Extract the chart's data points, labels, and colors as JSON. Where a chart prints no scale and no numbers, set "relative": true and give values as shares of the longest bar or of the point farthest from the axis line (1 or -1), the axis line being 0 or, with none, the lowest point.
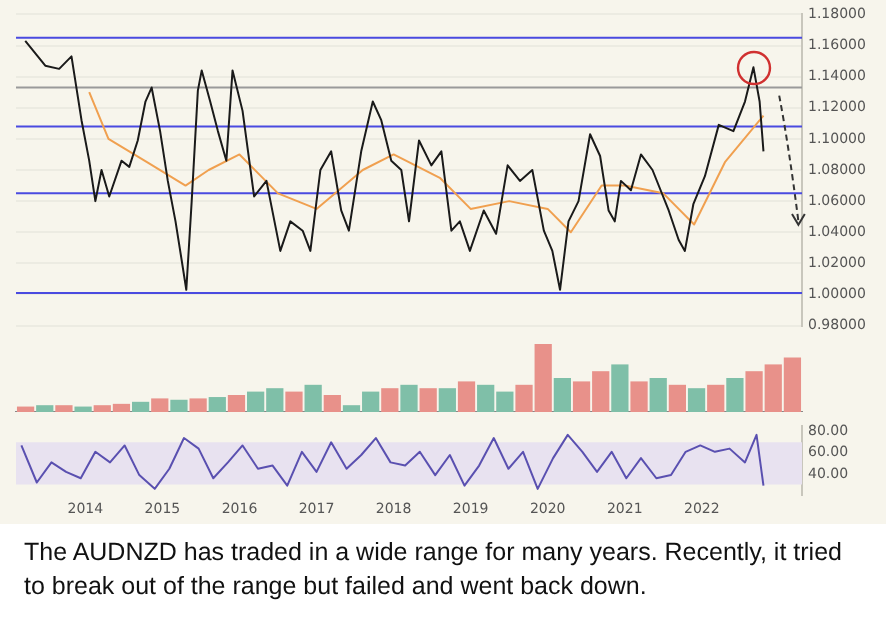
{
  "chart_data": [
    {
      "type": "line",
      "tick_labels": "y",
      "grid": true,
      "legend": false,
      "xlim": [
        2013.1,
        2023.3
      ],
      "ylim": [
        0.98,
        1.18
      ],
      "yticks": [
        {
          "value": 0.98,
          "label": "0.98000"
        },
        {
          "value": 1.0,
          "label": "1.00000"
        },
        {
          "value": 1.02,
          "label": "1.02000"
        },
        {
          "value": 1.04,
          "label": "1.04000"
        },
        {
          "value": 1.06,
          "label": "1.06000"
        },
        {
          "value": 1.08,
          "label": "1.08000"
        },
        {
          "value": 1.1,
          "label": "1.10000"
        },
        {
          "value": 1.12,
          "label": "1.12000"
        },
        {
          "value": 1.14,
          "label": "1.14000"
        },
        {
          "value": 1.16,
          "label": "1.16000"
        },
        {
          "value": 1.18,
          "label": "1.18000"
        }
      ],
      "series": [
        {
          "color": "#1a1a1a",
          "x": [
            2013.22,
            2013.48,
            2013.66,
            2013.82,
            2013.95,
            2014.05,
            2014.13,
            2014.21,
            2014.31,
            2014.47,
            2014.57,
            2014.68,
            2014.78,
            2014.86,
            2014.97,
            2015.07,
            2015.17,
            2015.25,
            2015.31,
            2015.38,
            2015.46,
            2015.51,
            2015.62,
            2015.72,
            2015.83,
            2015.91,
            2016.04,
            2016.19,
            2016.35,
            2016.53,
            2016.66,
            2016.82,
            2016.92,
            2017.05,
            2017.19,
            2017.32,
            2017.42,
            2017.58,
            2017.73,
            2017.84,
            2017.97,
            2018.1,
            2018.2,
            2018.33,
            2018.49,
            2018.62,
            2018.75,
            2018.86,
            2018.99,
            2019.17,
            2019.33,
            2019.48,
            2019.64,
            2019.8,
            2019.95,
            2020.06,
            2020.16,
            2020.27,
            2020.4,
            2020.55,
            2020.68,
            2020.79,
            2020.87,
            2020.95,
            2021.08,
            2021.21,
            2021.36,
            2021.57,
            2021.7,
            2021.78,
            2021.89,
            2022.04,
            2022.22,
            2022.41,
            2022.56,
            2022.67,
            2022.75,
            2022.8
          ],
          "values": [
            1.163,
            1.147,
            1.145,
            1.153,
            1.112,
            1.086,
            1.06,
            1.08,
            1.063,
            1.086,
            1.082,
            1.099,
            1.124,
            1.133,
            1.105,
            1.073,
            1.047,
            1.022,
            1.003,
            1.06,
            1.131,
            1.144,
            1.124,
            1.105,
            1.086,
            1.144,
            1.118,
            1.063,
            1.073,
            1.028,
            1.047,
            1.041,
            1.028,
            1.08,
            1.092,
            1.054,
            1.041,
            1.092,
            1.124,
            1.112,
            1.086,
            1.08,
            1.047,
            1.099,
            1.083,
            1.092,
            1.041,
            1.047,
            1.028,
            1.054,
            1.039,
            1.083,
            1.073,
            1.08,
            1.041,
            1.028,
            1.003,
            1.047,
            1.06,
            1.103,
            1.089,
            1.054,
            1.047,
            1.073,
            1.067,
            1.09,
            1.08,
            1.054,
            1.035,
            1.028,
            1.058,
            1.076,
            1.109,
            1.105,
            1.124,
            1.146,
            1.124,
            1.092
          ]
        },
        {
          "color": "#f0a050",
          "x": [
            2014.05,
            2014.3,
            2014.8,
            2015.3,
            2015.6,
            2016.0,
            2016.5,
            2017.0,
            2017.6,
            2018.0,
            2018.6,
            2019.0,
            2019.5,
            2020.0,
            2020.3,
            2020.7,
            2021.0,
            2021.5,
            2021.9,
            2022.3,
            2022.8
          ],
          "values": [
            1.13,
            1.1,
            1.085,
            1.07,
            1.08,
            1.09,
            1.065,
            1.055,
            1.08,
            1.09,
            1.075,
            1.055,
            1.06,
            1.055,
            1.04,
            1.07,
            1.07,
            1.065,
            1.045,
            1.085,
            1.115
          ]
        }
      ],
      "ref_lines": [
        {
          "axis": "y",
          "value": 1.165,
          "color": "#4a4ae0"
        },
        {
          "axis": "y",
          "value": 1.108,
          "color": "#4a4ae0"
        },
        {
          "axis": "y",
          "value": 1.065,
          "color": "#4a4ae0"
        },
        {
          "axis": "y",
          "value": 1.001,
          "color": "#4a4ae0"
        },
        {
          "axis": "y",
          "value": 1.133,
          "color": "#9a9a9a"
        }
      ]
    },
    {
      "type": "bar",
      "relative": true,
      "tick_labels": false,
      "legend": false,
      "categories": [
        null,
        null,
        null,
        null,
        null,
        null,
        null,
        null,
        null,
        null,
        null,
        null,
        null,
        null,
        null,
        null,
        null,
        null,
        null,
        null,
        null,
        null,
        null,
        null,
        null,
        null,
        null,
        null,
        null,
        null,
        null,
        null,
        null,
        null,
        null,
        null,
        null,
        null,
        null,
        null,
        null
      ],
      "values": [
        0.08,
        0.1,
        0.1,
        0.08,
        0.1,
        0.12,
        0.15,
        0.2,
        0.18,
        0.2,
        0.22,
        0.25,
        0.3,
        0.35,
        0.3,
        0.4,
        0.25,
        0.1,
        0.3,
        0.35,
        0.4,
        0.35,
        0.35,
        0.45,
        0.4,
        0.3,
        0.4,
        1.0,
        0.5,
        0.45,
        0.6,
        0.7,
        0.45,
        0.5,
        0.4,
        0.35,
        0.4,
        0.5,
        0.6,
        0.7,
        0.8
      ],
      "colors": [
        "#e8918a",
        "#7fbfa8",
        "#e8918a",
        "#7fbfa8",
        "#e8918a",
        "#e8918a",
        "#7fbfa8",
        "#e8918a",
        "#7fbfa8",
        "#e8918a",
        "#7fbfa8",
        "#e8918a",
        "#7fbfa8",
        "#7fbfa8",
        "#e8918a",
        "#7fbfa8",
        "#e8918a",
        "#7fbfa8",
        "#7fbfa8",
        "#e8918a",
        "#7fbfa8",
        "#e8918a",
        "#7fbfa8",
        "#e8918a",
        "#7fbfa8",
        "#7fbfa8",
        "#e8918a",
        "#e8918a",
        "#7fbfa8",
        "#e8918a",
        "#e8918a",
        "#7fbfa8",
        "#e8918a",
        "#7fbfa8",
        "#e8918a",
        "#7fbfa8",
        "#e8918a",
        "#7fbfa8",
        "#e8918a",
        "#e8918a",
        "#e8918a"
      ]
    },
    {
      "type": "line",
      "grid": false,
      "legend": false,
      "xlim": [
        2013.1,
        2023.3
      ],
      "ylim": [
        20,
        85
      ],
      "xticks": [
        2014,
        2015,
        2016,
        2017,
        2018,
        2019,
        2020,
        2021,
        2022
      ],
      "yticks": [
        {
          "value": 40,
          "label": "40.00"
        },
        {
          "value": 60,
          "label": "60.00"
        },
        {
          "value": 80,
          "label": "80.00"
        }
      ],
      "series": [
        {
          "color": "#5a50b0",
          "x": [
            2013.17,
            2013.37,
            2013.56,
            2013.75,
            2013.94,
            2014.13,
            2014.32,
            2014.51,
            2014.7,
            2014.9,
            2015.09,
            2015.28,
            2015.47,
            2015.66,
            2015.85,
            2016.04,
            2016.24,
            2016.43,
            2016.62,
            2016.81,
            2017.0,
            2017.19,
            2017.39,
            2017.58,
            2017.77,
            2017.96,
            2018.15,
            2018.34,
            2018.54,
            2018.73,
            2018.92,
            2019.11,
            2019.3,
            2019.49,
            2019.68,
            2019.87,
            2020.07,
            2020.26,
            2020.45,
            2020.64,
            2020.83,
            2021.02,
            2021.21,
            2021.41,
            2021.6,
            2021.79,
            2021.98,
            2022.17,
            2022.36,
            2022.56,
            2022.71,
            2022.8
          ],
          "values": [
            67,
            32,
            51,
            42,
            36,
            61,
            51,
            67,
            39,
            26,
            45,
            74,
            64,
            36,
            51,
            67,
            45,
            48,
            29,
            61,
            42,
            70,
            45,
            58,
            74,
            51,
            48,
            61,
            39,
            58,
            29,
            48,
            74,
            45,
            61,
            26,
            55,
            77,
            61,
            42,
            61,
            36,
            55,
            36,
            39,
            61,
            67,
            61,
            64,
            51,
            77,
            29
          ]
        }
      ],
      "bands": [
        {
          "axis": "y",
          "from": 30,
          "to": 70,
          "color": "#e8e2f0"
        }
      ],
      "annotations": [
        "The AUDNZD has traded in a wide range for many years. Recently, it tried to break out of the range but failed and went back down."
      ]
    }
  ]
}
